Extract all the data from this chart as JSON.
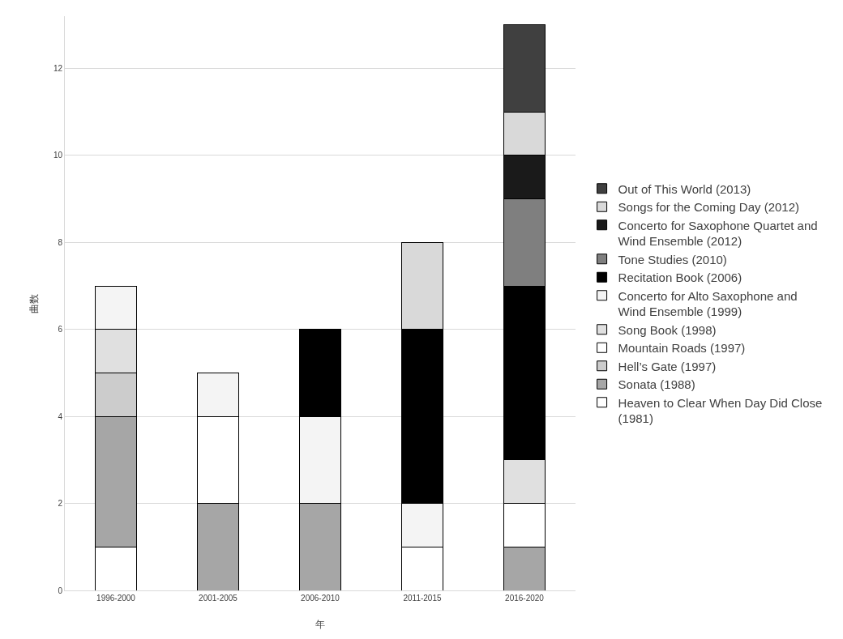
{
  "chart_data": {
    "type": "bar",
    "stacked": true,
    "xlabel": "年",
    "ylabel": "曲数",
    "categories": [
      "1996-2000",
      "2001-2005",
      "2006-2010",
      "2011-2015",
      "2016-2020"
    ],
    "ylim": [
      0,
      13.2
    ],
    "yticks": [
      0,
      2,
      4,
      6,
      8,
      10,
      12
    ],
    "grid": "y",
    "legend": "right",
    "series": [
      {
        "name": "Heaven to Clear When Day Did Close (1981)",
        "color": "#ffffff",
        "values": [
          1,
          0,
          0,
          0,
          0
        ]
      },
      {
        "name": "Sonata (1988)",
        "color": "#a6a6a6",
        "values": [
          3,
          2,
          2,
          0,
          1
        ]
      },
      {
        "name": "Hell’s Gate (1997)",
        "color": "#cccccc",
        "values": [
          1,
          0,
          0,
          0,
          0
        ]
      },
      {
        "name": "Mountain Roads (1997)",
        "color": "#ffffff",
        "values": [
          0,
          2,
          0,
          1,
          1
        ]
      },
      {
        "name": "Song Book (1998)",
        "color": "#e0e0e0",
        "values": [
          1,
          0,
          0,
          0,
          1
        ]
      },
      {
        "name": "Concerto for Alto Saxophone and Wind Ensemble (1999)",
        "color": "#f4f4f4",
        "values": [
          1,
          1,
          2,
          1,
          0
        ]
      },
      {
        "name": "Recitation Book (2006)",
        "color": "#000000",
        "values": [
          0,
          0,
          2,
          4,
          4
        ]
      },
      {
        "name": "Tone Studies (2010)",
        "color": "#7f7f7f",
        "values": [
          0,
          0,
          0,
          0,
          2
        ]
      },
      {
        "name": "Concerto for Saxophone Quartet and Wind Ensemble (2012)",
        "color": "#1a1a1a",
        "values": [
          0,
          0,
          0,
          0,
          1
        ]
      },
      {
        "name": "Songs for the Coming Day (2012)",
        "color": "#d9d9d9",
        "values": [
          0,
          0,
          0,
          2,
          1
        ]
      },
      {
        "name": "Out of This World (2013)",
        "color": "#404040",
        "values": [
          0,
          0,
          0,
          0,
          2
        ]
      }
    ]
  }
}
